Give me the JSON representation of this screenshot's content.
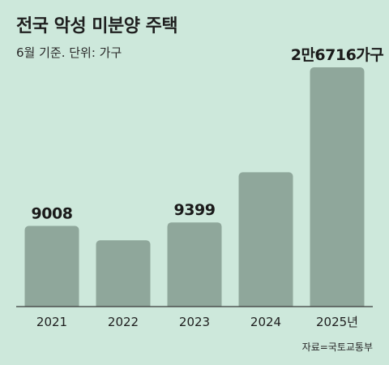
{
  "header": {
    "title": "전국 악성 미분양 주택",
    "subtitle": "6월 기준. 단위: 가구"
  },
  "source": "자료=국토교통부",
  "colors": {
    "background": "#cde8db",
    "bar": "#8fa79b"
  },
  "chart_data": {
    "type": "bar",
    "title": "전국 악성 미분양 주택",
    "subtitle": "6월 기준. 단위: 가구",
    "categories": [
      "2021",
      "2022",
      "2023",
      "2024",
      "2025년"
    ],
    "values": [
      9008,
      7400,
      9399,
      15000,
      26716
    ],
    "data_labels": [
      "9008",
      "",
      "9399",
      "",
      "2만6716가구"
    ],
    "ylim": [
      0,
      27500
    ],
    "grid": false,
    "legend": "none"
  }
}
